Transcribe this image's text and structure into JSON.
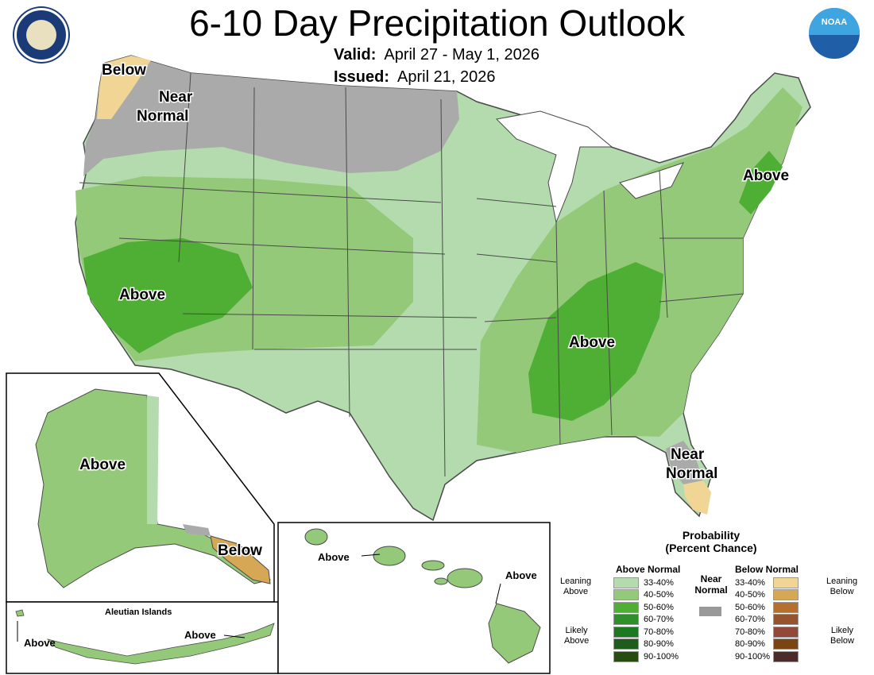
{
  "header": {
    "title": "6-10 Day Precipitation Outlook",
    "valid_label": "Valid:",
    "valid_value": "April 27 - May 1, 2026",
    "issued_label": "Issued:",
    "issued_value": "April 21, 2026",
    "logo_right_text": "NOAA"
  },
  "map_labels": {
    "pnw_below": "Below",
    "north_near_1": "Near",
    "north_near_2": "Normal",
    "ca_above": "Above",
    "se_above": "Above",
    "ne_above": "Above",
    "fl_near_1": "Near",
    "fl_near_2": "Normal",
    "ak_above": "Above",
    "ak_below": "Below",
    "aleutian_title": "Aleutian Islands",
    "aleutian_above_left": "Above",
    "aleutian_above_right": "Above",
    "hi_above_left": "Above",
    "hi_above_right": "Above"
  },
  "legend": {
    "title_line1": "Probability",
    "title_line2": "(Percent Chance)",
    "above_header": "Above Normal",
    "below_header": "Below Normal",
    "near_line1": "Near",
    "near_line2": "Normal",
    "leaning_above_1": "Leaning",
    "leaning_above_2": "Above",
    "likely_above_1": "Likely",
    "likely_above_2": "Above",
    "leaning_below_1": "Leaning",
    "leaning_below_2": "Below",
    "likely_below_1": "Likely",
    "likely_below_2": "Below",
    "above_rows": [
      {
        "label": "33-40%",
        "color": "#b3dbad"
      },
      {
        "label": "40-50%",
        "color": "#95c97a"
      },
      {
        "label": "50-60%",
        "color": "#4fae34"
      },
      {
        "label": "60-70%",
        "color": "#2f8f2a"
      },
      {
        "label": "70-80%",
        "color": "#1b7a1f"
      },
      {
        "label": "80-90%",
        "color": "#1e5c1c"
      },
      {
        "label": "90-100%",
        "color": "#264d0f"
      }
    ],
    "below_rows": [
      {
        "label": "33-40%",
        "color": "#f0d595"
      },
      {
        "label": "40-50%",
        "color": "#d6a856"
      },
      {
        "label": "50-60%",
        "color": "#b5702f"
      },
      {
        "label": "60-70%",
        "color": "#95542d"
      },
      {
        "label": "70-80%",
        "color": "#93493a"
      },
      {
        "label": "80-90%",
        "color": "#7a4413"
      },
      {
        "label": "90-100%",
        "color": "#4d2b2b"
      }
    ],
    "near_color": "#999999"
  }
}
